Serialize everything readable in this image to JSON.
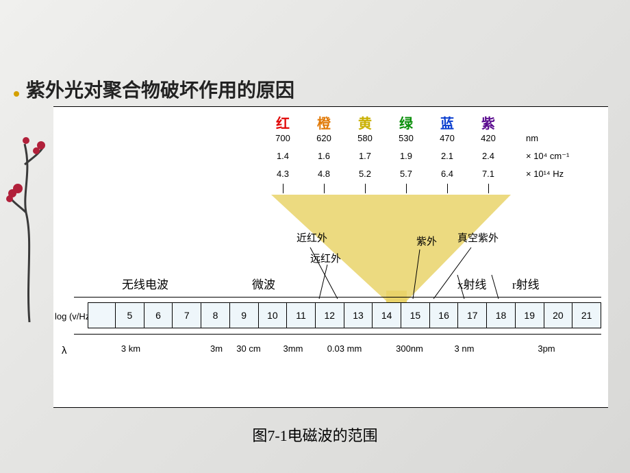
{
  "heading": "紫外光对聚合物破坏作用的原因",
  "caption": "图7-1电磁波的范围",
  "visible": {
    "labels": [
      {
        "text": "红",
        "color": "#e10808"
      },
      {
        "text": "橙",
        "color": "#e17a08"
      },
      {
        "text": "黄",
        "color": "#c9b000"
      },
      {
        "text": "绿",
        "color": "#0b8f0b"
      },
      {
        "text": "蓝",
        "color": "#0b3fcf"
      },
      {
        "text": "紫",
        "color": "#5a0b8f"
      }
    ],
    "row_nm": [
      "700",
      "620",
      "580",
      "530",
      "470",
      "420"
    ],
    "row_nm_unit": "nm",
    "row_cm": [
      "1.4",
      "1.6",
      "1.7",
      "1.9",
      "2.1",
      "2.4"
    ],
    "row_cm_unit": "× 10⁴  cm⁻¹",
    "row_hz": [
      "4.3",
      "4.8",
      "5.2",
      "5.7",
      "6.4",
      "7.1"
    ],
    "row_hz_unit": "× 10¹⁴ Hz"
  },
  "regions": {
    "near_ir": "近红外",
    "far_ir": "远红外",
    "uv": "紫外",
    "vac_uv": "真空紫外"
  },
  "bands": {
    "radio": "无线电波",
    "microwave": "微波",
    "xray": "x射线",
    "gamma": "r射线"
  },
  "spectrum": {
    "ylabel": "log (v/Hz)",
    "ticks": [
      "5",
      "6",
      "7",
      "8",
      "9",
      "10",
      "11",
      "12",
      "13",
      "14",
      "15",
      "16",
      "17",
      "18",
      "19",
      "20",
      "21"
    ],
    "bar_color": "#eef6fa",
    "funnel_color": "#e9d36a",
    "lambda_label": "λ",
    "lambda_ticks": [
      {
        "pos": 113,
        "text": "3 km"
      },
      {
        "pos": 238,
        "text": "3m"
      },
      {
        "pos": 285,
        "text": "30 cm"
      },
      {
        "pos": 350,
        "text": "3mm"
      },
      {
        "pos": 425,
        "text": "0.03 mm"
      },
      {
        "pos": 520,
        "text": "300nm"
      },
      {
        "pos": 600,
        "text": "3 nm"
      },
      {
        "pos": 720,
        "text": "3pm"
      }
    ]
  }
}
